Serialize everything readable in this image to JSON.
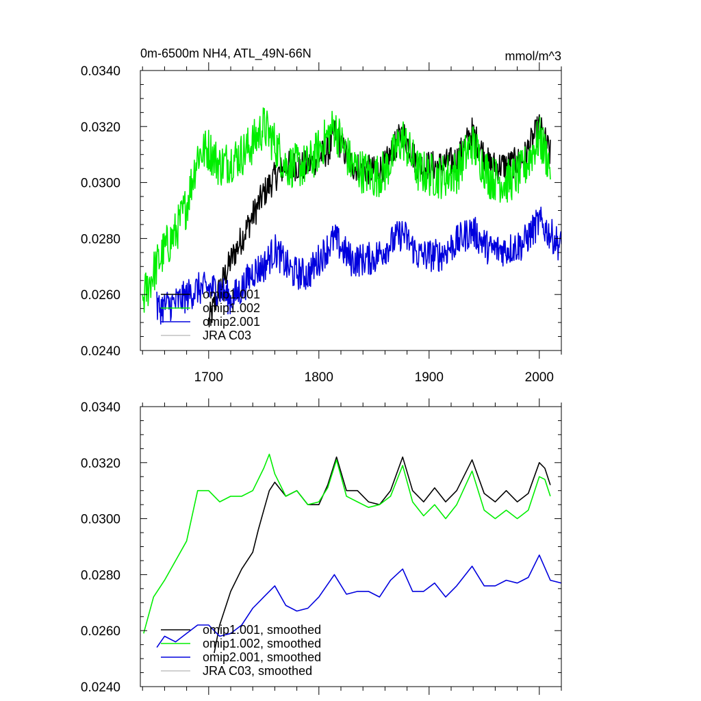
{
  "colors": {
    "omip1_001": "#000000",
    "omip1_002": "#00ee00",
    "omip2_001": "#0000dd",
    "jra_c03": "#c0c0c0"
  },
  "chart_data": [
    {
      "type": "line",
      "title": "0m-6500m NH4, ATL_49N-66N",
      "units": "mmol/m^3",
      "xlim": [
        1638,
        2020
      ],
      "ylim": [
        0.024,
        0.034
      ],
      "yticks": [
        "0.0240",
        "0.0260",
        "0.0280",
        "0.0300",
        "0.0320",
        "0.0340"
      ],
      "xticks": [
        "1700",
        "1800",
        "1900",
        "2000"
      ],
      "legend": [
        "omip1.001",
        "omip1.002",
        "omip2.001",
        "JRA C03"
      ],
      "legend_position": "bottom-left",
      "series": [
        {
          "name": "omip1.001",
          "color_key": "omip1_001",
          "start": 1700,
          "end": 2010,
          "x": [
            1700,
            1710,
            1720,
            1730,
            1740,
            1750,
            1760,
            1770,
            1790,
            1810,
            1814,
            1830,
            1850,
            1860,
            1876,
            1890,
            1910,
            1925,
            1939,
            1955,
            1970,
            1985,
            2000,
            2010
          ],
          "y": [
            0.025,
            0.0262,
            0.0272,
            0.028,
            0.0288,
            0.0296,
            0.0302,
            0.0306,
            0.0306,
            0.0312,
            0.0318,
            0.0306,
            0.0304,
            0.0306,
            0.0318,
            0.0306,
            0.0306,
            0.0308,
            0.0318,
            0.0306,
            0.0306,
            0.0308,
            0.032,
            0.031
          ]
        },
        {
          "name": "omip1.002",
          "color_key": "omip1_002",
          "start": 1640,
          "end": 2010,
          "x": [
            1640,
            1650,
            1660,
            1670,
            1680,
            1690,
            1700,
            1710,
            1720,
            1730,
            1740,
            1750,
            1760,
            1770,
            1790,
            1814,
            1830,
            1850,
            1860,
            1876,
            1890,
            1910,
            1925,
            1939,
            1955,
            1970,
            1985,
            2000,
            2010
          ],
          "y": [
            0.0258,
            0.0268,
            0.0276,
            0.0282,
            0.0292,
            0.031,
            0.0312,
            0.0306,
            0.0308,
            0.031,
            0.0314,
            0.032,
            0.0314,
            0.0306,
            0.0306,
            0.032,
            0.0306,
            0.0302,
            0.0304,
            0.0316,
            0.0304,
            0.0302,
            0.0304,
            0.0314,
            0.0302,
            0.03,
            0.0304,
            0.0316,
            0.0306
          ]
        },
        {
          "name": "omip2.001",
          "color_key": "omip2_001",
          "start": 1653,
          "end": 2020,
          "x": [
            1653,
            1670,
            1690,
            1710,
            1720,
            1730,
            1740,
            1750,
            1760,
            1775,
            1790,
            1814,
            1830,
            1850,
            1876,
            1890,
            1910,
            1939,
            1955,
            1970,
            1985,
            2000,
            2020
          ],
          "y": [
            0.0255,
            0.0257,
            0.0262,
            0.0262,
            0.0258,
            0.0262,
            0.0268,
            0.027,
            0.0276,
            0.0268,
            0.0267,
            0.028,
            0.0272,
            0.0273,
            0.0282,
            0.0274,
            0.0274,
            0.0283,
            0.0276,
            0.0276,
            0.0278,
            0.0286,
            0.0277
          ]
        },
        {
          "name": "JRA C03",
          "color_key": "jra_c03",
          "x": [],
          "y": []
        }
      ]
    },
    {
      "type": "line",
      "title": "",
      "units": "",
      "xlim": [
        1638,
        2020
      ],
      "ylim": [
        0.024,
        0.034
      ],
      "yticks": [
        "0.0240",
        "0.0260",
        "0.0280",
        "0.0300",
        "0.0320",
        "0.0340"
      ],
      "xticks": [],
      "legend": [
        "omip1.001, smoothed",
        "omip1.002, smoothed",
        "omip2.001, smoothed",
        "JRA C03, smoothed"
      ],
      "legend_position": "bottom-left",
      "series": [
        {
          "name": "omip1.001, smoothed",
          "color_key": "omip1_001",
          "x": [
            1705,
            1710,
            1720,
            1730,
            1740,
            1745,
            1750,
            1755,
            1760,
            1770,
            1780,
            1790,
            1800,
            1808,
            1816,
            1825,
            1835,
            1845,
            1855,
            1865,
            1876,
            1885,
            1895,
            1905,
            1915,
            1925,
            1939,
            1950,
            1960,
            1970,
            1980,
            1990,
            2000,
            2005,
            2010
          ],
          "y": [
            0.0252,
            0.0262,
            0.0274,
            0.0282,
            0.0288,
            0.0296,
            0.0303,
            0.031,
            0.0313,
            0.0308,
            0.031,
            0.0305,
            0.0305,
            0.0312,
            0.0322,
            0.031,
            0.031,
            0.0306,
            0.0305,
            0.031,
            0.0322,
            0.031,
            0.0306,
            0.0311,
            0.0306,
            0.031,
            0.0321,
            0.0309,
            0.0306,
            0.031,
            0.0306,
            0.0309,
            0.032,
            0.0318,
            0.0312
          ]
        },
        {
          "name": "omip1.002, smoothed",
          "color_key": "omip1_002",
          "x": [
            1641,
            1650,
            1660,
            1670,
            1680,
            1690,
            1700,
            1710,
            1720,
            1730,
            1740,
            1750,
            1755,
            1760,
            1770,
            1780,
            1790,
            1800,
            1808,
            1816,
            1825,
            1835,
            1845,
            1855,
            1865,
            1876,
            1885,
            1895,
            1905,
            1915,
            1925,
            1939,
            1950,
            1960,
            1970,
            1980,
            1990,
            2000,
            2005,
            2010
          ],
          "y": [
            0.0259,
            0.0272,
            0.0278,
            0.0285,
            0.0292,
            0.031,
            0.031,
            0.0306,
            0.0308,
            0.0308,
            0.031,
            0.0318,
            0.0323,
            0.0316,
            0.0308,
            0.031,
            0.0305,
            0.0306,
            0.0311,
            0.0321,
            0.0308,
            0.0306,
            0.0304,
            0.0305,
            0.0308,
            0.0319,
            0.0306,
            0.0301,
            0.0305,
            0.03,
            0.0305,
            0.0317,
            0.0303,
            0.03,
            0.0303,
            0.03,
            0.0303,
            0.0315,
            0.0314,
            0.0308
          ]
        },
        {
          "name": "omip2.001, smoothed",
          "color_key": "omip2_001",
          "x": [
            1653,
            1660,
            1670,
            1680,
            1690,
            1700,
            1710,
            1720,
            1730,
            1740,
            1750,
            1760,
            1770,
            1780,
            1790,
            1800,
            1814,
            1825,
            1835,
            1845,
            1855,
            1865,
            1876,
            1885,
            1895,
            1905,
            1915,
            1925,
            1939,
            1950,
            1960,
            1970,
            1980,
            1990,
            2000,
            2010,
            2020
          ],
          "y": [
            0.0254,
            0.0258,
            0.0256,
            0.0259,
            0.0262,
            0.0262,
            0.0258,
            0.0259,
            0.0262,
            0.0268,
            0.0272,
            0.0276,
            0.0269,
            0.0267,
            0.0268,
            0.0272,
            0.028,
            0.0273,
            0.0274,
            0.0274,
            0.0272,
            0.0278,
            0.0282,
            0.0274,
            0.0274,
            0.0277,
            0.0272,
            0.0276,
            0.0283,
            0.0276,
            0.0276,
            0.0278,
            0.0277,
            0.0279,
            0.0287,
            0.0278,
            0.0277
          ]
        },
        {
          "name": "JRA C03, smoothed",
          "color_key": "jra_c03",
          "x": [],
          "y": []
        }
      ]
    }
  ]
}
